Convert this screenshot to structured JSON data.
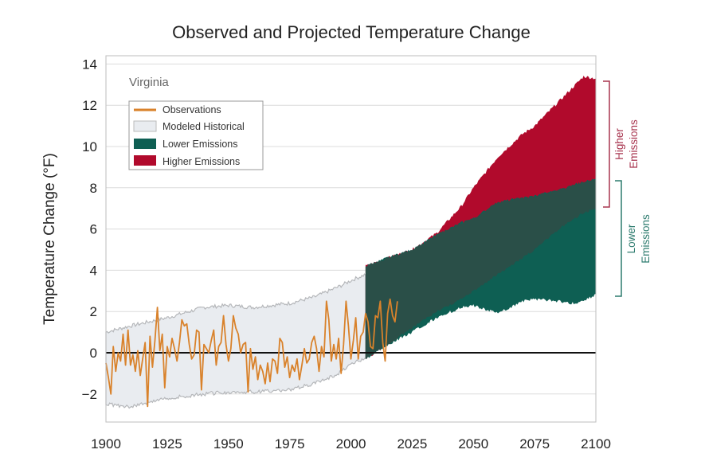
{
  "chart_data": {
    "type": "area",
    "title": "Observed and Projected Temperature Change",
    "ylabel": "Temperature Change (°F)",
    "xlabel": "",
    "region_label": "Virginia",
    "xlim": [
      1900,
      2100
    ],
    "ylim": [
      -3.4,
      14
    ],
    "x_ticks": [
      1900,
      1925,
      1950,
      1975,
      2000,
      2025,
      2050,
      2075,
      2100
    ],
    "y_ticks": [
      -2,
      0,
      2,
      4,
      6,
      8,
      10,
      12,
      14
    ],
    "grid": true,
    "legend_position": "top-left",
    "legend": [
      {
        "label": "Observations",
        "color": "#d9822b",
        "kind": "line"
      },
      {
        "label": "Modeled Historical",
        "color": "#e9ecf0",
        "kind": "box"
      },
      {
        "label": "Lower Emissions",
        "color": "#0e5f53",
        "kind": "box"
      },
      {
        "label": "Higher Emissions",
        "color": "#b10a2c",
        "kind": "box"
      }
    ],
    "bracket_labels": {
      "higher": [
        "Higher",
        "Emissions"
      ],
      "lower": [
        "Lower",
        "Emissions"
      ]
    },
    "colors": {
      "observations": "#d9822b",
      "modeled_fill": "#e9ecf0",
      "modeled_edge": "#b5b7ba",
      "lower": "#0e5f53",
      "higher": "#b10a2c",
      "overlap": "#2a4f48",
      "higher_bracket": "#a8354f",
      "lower_bracket": "#2d7b6e"
    },
    "modeled_historical": {
      "x": [
        1900,
        1910,
        1925,
        1940,
        1950,
        1960,
        1975,
        1985,
        1995,
        2000,
        2006
      ],
      "upper": [
        1.0,
        1.3,
        1.7,
        2.2,
        2.3,
        2.2,
        2.4,
        2.7,
        3.2,
        3.5,
        3.8
      ],
      "lower": [
        -2.5,
        -2.6,
        -2.2,
        -2.0,
        -1.9,
        -1.9,
        -1.8,
        -1.5,
        -1.0,
        -0.5,
        -0.3
      ]
    },
    "higher_emissions": {
      "x": [
        2006,
        2015,
        2025,
        2035,
        2045,
        2050,
        2060,
        2070,
        2075,
        2085,
        2090,
        2095,
        2100
      ],
      "upper": [
        4.2,
        4.6,
        5.0,
        5.8,
        7.1,
        8.0,
        9.5,
        10.6,
        11.0,
        12.2,
        12.8,
        13.4,
        13.3
      ],
      "lower": [
        -0.3,
        0.4,
        1.2,
        2.0,
        2.6,
        3.0,
        3.8,
        4.6,
        5.0,
        6.0,
        6.4,
        6.8,
        7.0
      ]
    },
    "lower_emissions": {
      "x": [
        2006,
        2015,
        2025,
        2035,
        2045,
        2050,
        2060,
        2070,
        2075,
        2085,
        2090,
        2095,
        2100
      ],
      "upper": [
        4.2,
        4.6,
        5.0,
        5.7,
        6.3,
        6.5,
        7.3,
        7.5,
        7.6,
        7.9,
        8.1,
        8.3,
        8.4
      ],
      "lower": [
        -0.3,
        0.4,
        1.0,
        1.7,
        2.2,
        2.3,
        1.9,
        2.5,
        2.6,
        2.5,
        2.4,
        2.5,
        2.8
      ]
    },
    "observations": {
      "start_year": 1900,
      "values": [
        -0.5,
        -1.2,
        -2.0,
        0.3,
        -0.9,
        0.0,
        -0.4,
        0.9,
        -0.6,
        1.1,
        -0.6,
        -0.1,
        -0.9,
        0.1,
        -1.1,
        -0.3,
        0.5,
        -2.6,
        0.8,
        -0.7,
        0.6,
        2.2,
        0.1,
        0.9,
        -1.7,
        0.3,
        -0.2,
        0.7,
        0.2,
        -0.4,
        0.5,
        1.6,
        1.3,
        1.4,
        0.4,
        -0.3,
        -0.1,
        1.1,
        1.0,
        -1.8,
        0.4,
        0.2,
        0.0,
        0.6,
        1.1,
        -0.6,
        0.3,
        0.5,
        1.8,
        0.4,
        -0.4,
        0.2,
        1.8,
        1.2,
        0.9,
        0.0,
        0.4,
        0.5,
        -1.9,
        0.2,
        -0.8,
        -0.2,
        -1.3,
        -0.6,
        -0.9,
        -1.5,
        -0.5,
        -1.4,
        -0.3,
        -0.4,
        -1.0,
        0.7,
        0.5,
        -0.7,
        -0.2,
        -1.2,
        -0.6,
        -0.9,
        -0.3,
        -1.3,
        -0.6,
        0.2,
        -0.5,
        -0.3,
        0.5,
        0.8,
        0.2,
        -0.9,
        0.3,
        -0.2,
        2.5,
        1.6,
        -0.4,
        0.4,
        -0.3,
        0.7,
        -1.0,
        0.4,
        2.5,
        1.3,
        -0.3,
        0.6,
        1.7,
        -0.3,
        0.8,
        1.0,
        1.9,
        1.5,
        0.3,
        0.2,
        1.8,
        1.7,
        2.5,
        0.5,
        -0.4,
        1.9,
        2.6,
        1.8,
        1.5,
        2.5
      ]
    }
  }
}
